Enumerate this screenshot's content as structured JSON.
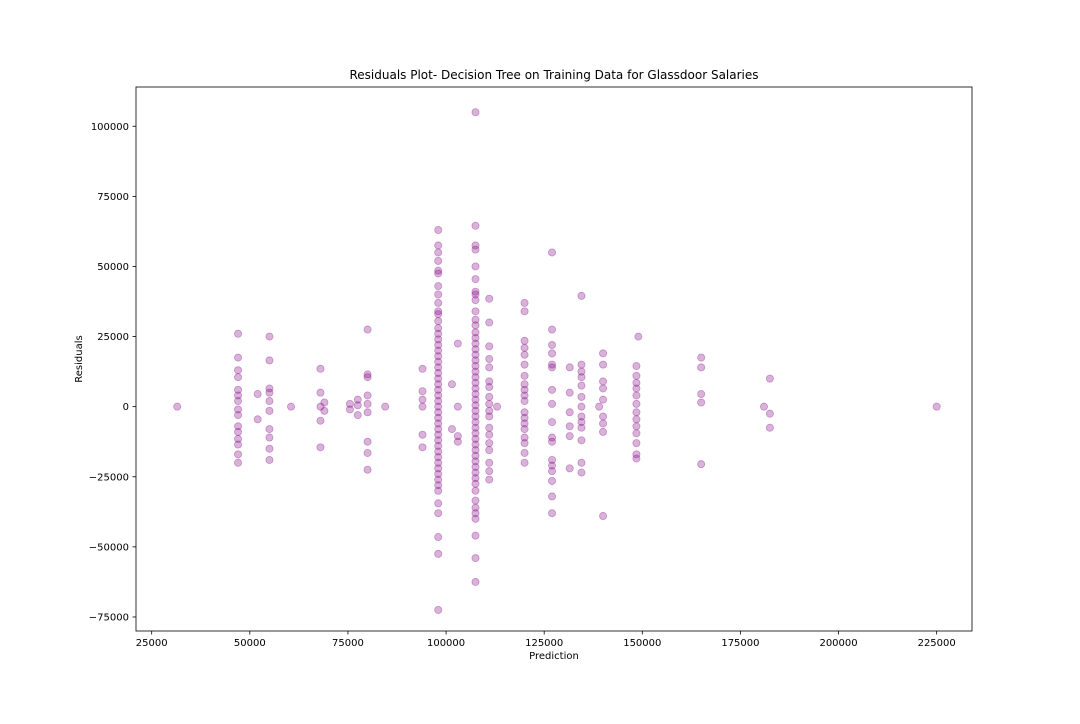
{
  "chart_data": {
    "type": "scatter",
    "title": "Residuals Plot- Decision Tree on Training Data for Glassdoor Salaries",
    "xlabel": "Prediction",
    "ylabel": "Residuals",
    "xlim": [
      21000,
      234000
    ],
    "ylim": [
      -80000,
      114000
    ],
    "xticks": [
      25000,
      50000,
      75000,
      100000,
      125000,
      150000,
      175000,
      200000,
      225000
    ],
    "xtick_labels": [
      "25000",
      "50000",
      "75000",
      "100000",
      "125000",
      "150000",
      "175000",
      "200000",
      "225000"
    ],
    "yticks": [
      -75000,
      -50000,
      -25000,
      0,
      25000,
      50000,
      75000,
      100000
    ],
    "ytick_labels": [
      "−75000",
      "−50000",
      "−25000",
      "0",
      "25000",
      "50000",
      "75000",
      "100000"
    ],
    "grid": false,
    "marker_color": "#800080",
    "marker_alpha": 0.3,
    "series": [
      {
        "points": [
          [
            31500,
            0
          ],
          [
            47000,
            26000
          ],
          [
            47000,
            17500
          ],
          [
            47000,
            13000
          ],
          [
            47000,
            10500
          ],
          [
            47000,
            6000
          ],
          [
            47000,
            4000
          ],
          [
            47000,
            2000
          ],
          [
            47000,
            -1000
          ],
          [
            47000,
            -3000
          ],
          [
            47000,
            -7000
          ],
          [
            47000,
            -9000
          ],
          [
            47000,
            -11500
          ],
          [
            47000,
            -13500
          ],
          [
            47000,
            -17000
          ],
          [
            47000,
            -20000
          ],
          [
            52000,
            4500
          ],
          [
            52000,
            -4500
          ],
          [
            55000,
            25000
          ],
          [
            55000,
            16500
          ],
          [
            55000,
            6500
          ],
          [
            55000,
            5000
          ],
          [
            55000,
            2000
          ],
          [
            55000,
            -1500
          ],
          [
            55000,
            -8000
          ],
          [
            55000,
            -11000
          ],
          [
            55000,
            -15000
          ],
          [
            55000,
            -19000
          ],
          [
            60500,
            0
          ],
          [
            68000,
            13500
          ],
          [
            68000,
            5000
          ],
          [
            68000,
            0
          ],
          [
            68000,
            -5000
          ],
          [
            68000,
            -14500
          ],
          [
            69000,
            1500
          ],
          [
            69000,
            -1500
          ],
          [
            75500,
            1000
          ],
          [
            75500,
            -1000
          ],
          [
            77500,
            2500
          ],
          [
            77500,
            500
          ],
          [
            77500,
            -3000
          ],
          [
            80000,
            27500
          ],
          [
            80000,
            11500
          ],
          [
            80000,
            10500
          ],
          [
            80000,
            4000
          ],
          [
            80000,
            1000
          ],
          [
            80000,
            -2000
          ],
          [
            80000,
            -12500
          ],
          [
            80000,
            -16500
          ],
          [
            80000,
            -22500
          ],
          [
            84500,
            0
          ],
          [
            94000,
            13500
          ],
          [
            94000,
            5500
          ],
          [
            94000,
            2500
          ],
          [
            94000,
            0
          ],
          [
            94000,
            -10000
          ],
          [
            94000,
            -14500
          ],
          [
            98000,
            63000
          ],
          [
            98000,
            57500
          ],
          [
            98000,
            55000
          ],
          [
            98000,
            52000
          ],
          [
            98000,
            48500
          ],
          [
            98000,
            47500
          ],
          [
            98000,
            43000
          ],
          [
            98000,
            40000
          ],
          [
            98000,
            37000
          ],
          [
            98000,
            34000
          ],
          [
            98000,
            33000
          ],
          [
            98000,
            30500
          ],
          [
            98000,
            28000
          ],
          [
            98000,
            26000
          ],
          [
            98000,
            24000
          ],
          [
            98000,
            22000
          ],
          [
            98000,
            20000
          ],
          [
            98000,
            18000
          ],
          [
            98000,
            16000
          ],
          [
            98000,
            14000
          ],
          [
            98000,
            12000
          ],
          [
            98000,
            10000
          ],
          [
            98000,
            8000
          ],
          [
            98000,
            6000
          ],
          [
            98000,
            4000
          ],
          [
            98000,
            2000
          ],
          [
            98000,
            0
          ],
          [
            98000,
            -2000
          ],
          [
            98000,
            -4000
          ],
          [
            98000,
            -6000
          ],
          [
            98000,
            -8000
          ],
          [
            98000,
            -10000
          ],
          [
            98000,
            -12000
          ],
          [
            98000,
            -14000
          ],
          [
            98000,
            -16000
          ],
          [
            98000,
            -18000
          ],
          [
            98000,
            -20000
          ],
          [
            98000,
            -22000
          ],
          [
            98000,
            -24000
          ],
          [
            98000,
            -26000
          ],
          [
            98000,
            -28000
          ],
          [
            98000,
            -30000
          ],
          [
            98000,
            -34500
          ],
          [
            98000,
            -38000
          ],
          [
            98000,
            -46500
          ],
          [
            98000,
            -52500
          ],
          [
            98000,
            -72500
          ],
          [
            101500,
            8000
          ],
          [
            101500,
            -8000
          ],
          [
            103000,
            22500
          ],
          [
            103000,
            0
          ],
          [
            103000,
            -10500
          ],
          [
            103000,
            -12500
          ],
          [
            107500,
            105000
          ],
          [
            107500,
            64500
          ],
          [
            107500,
            57500
          ],
          [
            107500,
            56000
          ],
          [
            107500,
            50000
          ],
          [
            107500,
            45500
          ],
          [
            107500,
            41000
          ],
          [
            107500,
            40000
          ],
          [
            107500,
            38000
          ],
          [
            107500,
            34000
          ],
          [
            107500,
            31000
          ],
          [
            107500,
            29000
          ],
          [
            107500,
            26500
          ],
          [
            107500,
            24500
          ],
          [
            107500,
            22500
          ],
          [
            107500,
            20500
          ],
          [
            107500,
            18500
          ],
          [
            107500,
            16500
          ],
          [
            107500,
            14500
          ],
          [
            107500,
            12500
          ],
          [
            107500,
            10500
          ],
          [
            107500,
            8500
          ],
          [
            107500,
            6500
          ],
          [
            107500,
            4500
          ],
          [
            107500,
            2500
          ],
          [
            107500,
            500
          ],
          [
            107500,
            -1500
          ],
          [
            107500,
            -3500
          ],
          [
            107500,
            -5500
          ],
          [
            107500,
            -7500
          ],
          [
            107500,
            -9500
          ],
          [
            107500,
            -11500
          ],
          [
            107500,
            -13500
          ],
          [
            107500,
            -15500
          ],
          [
            107500,
            -17500
          ],
          [
            107500,
            -19500
          ],
          [
            107500,
            -21500
          ],
          [
            107500,
            -23500
          ],
          [
            107500,
            -25500
          ],
          [
            107500,
            -27500
          ],
          [
            107500,
            -30000
          ],
          [
            107500,
            -33500
          ],
          [
            107500,
            -36000
          ],
          [
            107500,
            -38000
          ],
          [
            107500,
            -40000
          ],
          [
            107500,
            -46000
          ],
          [
            107500,
            -54000
          ],
          [
            107500,
            -62500
          ],
          [
            111000,
            38500
          ],
          [
            111000,
            30000
          ],
          [
            111000,
            21500
          ],
          [
            111000,
            17000
          ],
          [
            111000,
            14000
          ],
          [
            111000,
            9000
          ],
          [
            111000,
            7000
          ],
          [
            111000,
            3500
          ],
          [
            111000,
            1000
          ],
          [
            111000,
            -1500
          ],
          [
            111000,
            -3500
          ],
          [
            111000,
            -7500
          ],
          [
            111000,
            -10000
          ],
          [
            111000,
            -13000
          ],
          [
            111000,
            -15500
          ],
          [
            111000,
            -20000
          ],
          [
            111000,
            -23000
          ],
          [
            111000,
            -26000
          ],
          [
            113000,
            0
          ],
          [
            120000,
            37000
          ],
          [
            120000,
            34000
          ],
          [
            120000,
            23500
          ],
          [
            120000,
            21000
          ],
          [
            120000,
            18500
          ],
          [
            120000,
            15000
          ],
          [
            120000,
            11000
          ],
          [
            120000,
            8000
          ],
          [
            120000,
            6000
          ],
          [
            120000,
            4000
          ],
          [
            120000,
            2000
          ],
          [
            120000,
            -2000
          ],
          [
            120000,
            -4000
          ],
          [
            120000,
            -6000
          ],
          [
            120000,
            -8000
          ],
          [
            120000,
            -11000
          ],
          [
            120000,
            -13000
          ],
          [
            120000,
            -16500
          ],
          [
            120000,
            -20000
          ],
          [
            127000,
            55000
          ],
          [
            127000,
            27500
          ],
          [
            127000,
            22000
          ],
          [
            127000,
            19000
          ],
          [
            127000,
            15000
          ],
          [
            127000,
            14000
          ],
          [
            127000,
            6000
          ],
          [
            127000,
            1000
          ],
          [
            127000,
            -5500
          ],
          [
            127000,
            -11000
          ],
          [
            127000,
            -12500
          ],
          [
            127000,
            -19000
          ],
          [
            127000,
            -21000
          ],
          [
            127000,
            -23000
          ],
          [
            127000,
            -26500
          ],
          [
            127000,
            -32000
          ],
          [
            127000,
            -38000
          ],
          [
            131500,
            14000
          ],
          [
            131500,
            5000
          ],
          [
            131500,
            -2000
          ],
          [
            131500,
            -7000
          ],
          [
            131500,
            -10500
          ],
          [
            131500,
            -22000
          ],
          [
            134500,
            39500
          ],
          [
            134500,
            15000
          ],
          [
            134500,
            12500
          ],
          [
            134500,
            10500
          ],
          [
            134500,
            7500
          ],
          [
            134500,
            3500
          ],
          [
            134500,
            0
          ],
          [
            134500,
            -3500
          ],
          [
            134500,
            -5500
          ],
          [
            134500,
            -7500
          ],
          [
            134500,
            -12000
          ],
          [
            134500,
            -20000
          ],
          [
            134500,
            -23500
          ],
          [
            139000,
            0
          ],
          [
            140000,
            19000
          ],
          [
            140000,
            15000
          ],
          [
            140000,
            9000
          ],
          [
            140000,
            6500
          ],
          [
            140000,
            2500
          ],
          [
            140000,
            -3500
          ],
          [
            140000,
            -6000
          ],
          [
            140000,
            -9000
          ],
          [
            140000,
            -39000
          ],
          [
            148500,
            14500
          ],
          [
            148500,
            11000
          ],
          [
            148500,
            8500
          ],
          [
            148500,
            6500
          ],
          [
            148500,
            4000
          ],
          [
            148500,
            1000
          ],
          [
            148500,
            -2000
          ],
          [
            148500,
            -4500
          ],
          [
            148500,
            -7000
          ],
          [
            148500,
            -9500
          ],
          [
            148500,
            -13000
          ],
          [
            148500,
            -17000
          ],
          [
            148500,
            -18500
          ],
          [
            149000,
            25000
          ],
          [
            165000,
            17500
          ],
          [
            165000,
            14000
          ],
          [
            165000,
            4500
          ],
          [
            165000,
            1500
          ],
          [
            165000,
            -20500
          ],
          [
            181000,
            0
          ],
          [
            182500,
            10000
          ],
          [
            182500,
            -2500
          ],
          [
            182500,
            -7500
          ],
          [
            225000,
            0
          ]
        ]
      }
    ]
  }
}
